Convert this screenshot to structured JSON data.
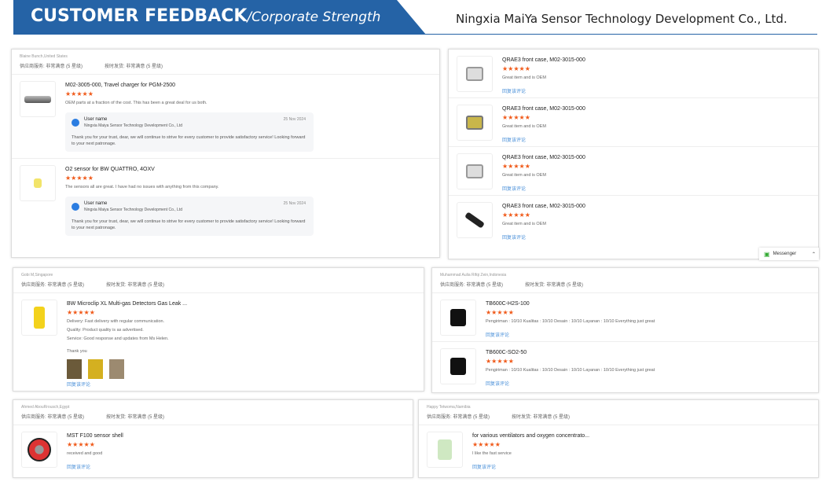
{
  "header": {
    "title": "CUSTOMER FEEDBACK",
    "subtitle": "/Corporate Strength",
    "company": "Ningxia MaiYa Sensor Technology Development Co., Ltd.",
    "accent": "#2563a6"
  },
  "colors": {
    "stars": "#f05a1a",
    "link": "#4a90d9"
  },
  "common": {
    "rating_supplier": "供应商服务: 非常满意 (5 星级)",
    "rating_shipping": "按时发货: 非常满意 (5 星级)",
    "stars": "★★★★★",
    "reply_link": "回复该评论"
  },
  "messenger": {
    "label": "Messenger"
  },
  "panels": [
    {
      "location": "Blaine Bunch,United States",
      "show_rating": true,
      "items": [
        {
          "title": "M02-3005-000, Travel charger for PGM-2500",
          "text": "OEM parts at a fraction of the cost. This has been a great deal for us both.",
          "thumb": "charger",
          "response": {
            "user": "User name",
            "company": "Ningxia Maiya Sensor Technology Development Co., Ltd",
            "date": "25 Nov 2024",
            "text": "Thank you for your trust, dear, we will continue to strive for every customer to provide satisfactory service!  Looking forward to your next patronage."
          }
        },
        {
          "title": "O2 sensor for BW QUATTRO, 4OXV",
          "text": "The sensors all are great. I have had no issues with anything from this company.",
          "thumb": "sensor",
          "response": {
            "user": "User name",
            "company": "Ningxia Maiya Sensor Technology Development Co., Ltd",
            "date": "25 Nov 2024",
            "text": "Thank you for your trust, dear, we will continue to strive for every customer to provide satisfactory service!  Looking forward to your next patronage."
          }
        }
      ]
    },
    {
      "location": "",
      "show_rating": false,
      "items": [
        {
          "title": "QRAE3 front case, M02-3015-000",
          "text": "Great item and is OEM",
          "thumb": "case",
          "reply": true
        },
        {
          "title": "QRAE3 front case, M02-3015-000",
          "text": "Great item and is OEM",
          "thumb": "case2",
          "reply": true
        },
        {
          "title": "QRAE3 front case, M02-3015-000",
          "text": "Great item and is OEM",
          "thumb": "case",
          "reply": true
        },
        {
          "title": "QRAE3 front case, M02-3015-000",
          "text": "Great item and is OEM",
          "thumb": "clip",
          "reply": true
        }
      ]
    },
    {
      "location": "Gobi M,Singapore",
      "show_rating": true,
      "items": [
        {
          "title": "BW Microclip XL Multi-gas Detectors Gas Leak ...",
          "lines": [
            "Delivery:    Fast delivery with regular communication.",
            "Quality:    Product quality is as advertised.",
            "Service:    Good response and updates from Ms Helen."
          ],
          "text": "Thank you",
          "thumb": "yellow",
          "pics": true,
          "reply": true
        }
      ]
    },
    {
      "location": "Muhammad Aulia Rifqi Zein,Indonesia",
      "show_rating": true,
      "items": [
        {
          "title": "TB600C-H2S-100",
          "text": "Pengiriman :   10/10 Kualitas :   10/10 Desain :   10/10 Layanan :   10/10 Everything just great",
          "thumb": "black",
          "reply": true
        },
        {
          "title": "TB600C-SO2-50",
          "text": "Pengiriman :   10/10 Kualitas :   10/10 Desain :   10/10 Layanan :   10/10 Everything just great",
          "thumb": "black",
          "reply": true
        }
      ]
    },
    {
      "location": "Ahmed AbouRrousch,Egypt",
      "show_rating": true,
      "items": [
        {
          "title": "MST F100 sensor shell",
          "text": "received and good",
          "thumb": "red",
          "reply": true
        }
      ]
    },
    {
      "location": "Happy Tetwoma,Namibia",
      "show_rating": true,
      "items": [
        {
          "title": "for various ventilators and oxygen concentrato...",
          "text": "I like the fast service",
          "thumb": "green",
          "reply": true
        }
      ]
    }
  ]
}
